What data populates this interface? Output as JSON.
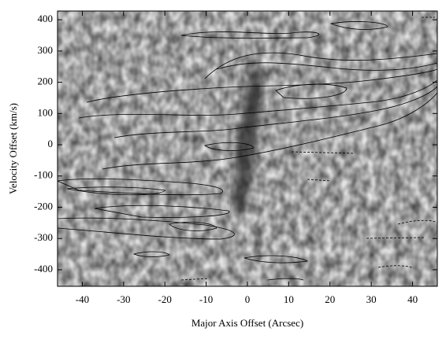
{
  "chart_data": {
    "type": "contour",
    "xlabel": "Major Axis Offset (Arcsec)",
    "ylabel": "Velocity Offset (km/s)",
    "xlim": [
      -46,
      46
    ],
    "ylim": [
      -453,
      428
    ],
    "xticks": [
      -40,
      -30,
      -20,
      -10,
      0,
      10,
      20,
      30,
      40
    ],
    "yticks": [
      -400,
      -300,
      -200,
      -100,
      0,
      100,
      200,
      300,
      400
    ],
    "colormap": "gray"
  }
}
